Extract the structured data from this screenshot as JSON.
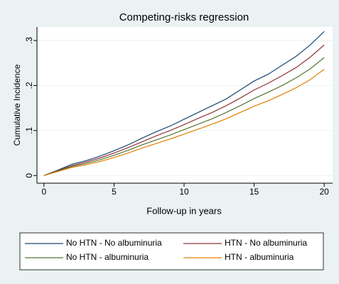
{
  "chart_data": {
    "type": "line",
    "title": "Competing-risks regression",
    "x_label": "Follow-up in years",
    "y_label": "Cumulative Incidence",
    "x": [
      0,
      1,
      2,
      3,
      4,
      5,
      6,
      7,
      8,
      9,
      10,
      11,
      12,
      13,
      14,
      15,
      16,
      17,
      18,
      19,
      20
    ],
    "series": [
      {
        "name": "No HTN - No albuminuria",
        "color": "#1a476f",
        "values": [
          0,
          0.012,
          0.025,
          0.033,
          0.043,
          0.055,
          0.068,
          0.083,
          0.097,
          0.11,
          0.125,
          0.14,
          0.155,
          0.17,
          0.19,
          0.21,
          0.225,
          0.245,
          0.265,
          0.29,
          0.32
        ]
      },
      {
        "name": "HTN - No albuminuria",
        "color": "#90353b",
        "values": [
          0,
          0.011,
          0.022,
          0.03,
          0.039,
          0.05,
          0.062,
          0.075,
          0.088,
          0.1,
          0.113,
          0.127,
          0.14,
          0.155,
          0.172,
          0.19,
          0.205,
          0.222,
          0.24,
          0.263,
          0.29
        ]
      },
      {
        "name": "No HTN - albuminuria",
        "color": "#55752f",
        "values": [
          0,
          0.01,
          0.02,
          0.027,
          0.035,
          0.045,
          0.056,
          0.068,
          0.079,
          0.09,
          0.102,
          0.114,
          0.126,
          0.14,
          0.155,
          0.171,
          0.185,
          0.2,
          0.217,
          0.237,
          0.262
        ]
      },
      {
        "name": "HTN - albuminuria",
        "color": "#e37e00",
        "values": [
          0,
          0.009,
          0.018,
          0.024,
          0.031,
          0.04,
          0.05,
          0.061,
          0.071,
          0.081,
          0.092,
          0.103,
          0.114,
          0.126,
          0.14,
          0.154,
          0.166,
          0.18,
          0.195,
          0.213,
          0.236
        ]
      }
    ],
    "xlim": [
      -0.5,
      20.6
    ],
    "xticks": [
      0,
      5,
      10,
      15,
      20
    ],
    "ylim": [
      -0.017,
      0.33
    ],
    "yticks": [
      0,
      {
        "value": 0.1,
        "label": ".1"
      },
      {
        "value": 0.2,
        "label": ".2"
      },
      {
        "value": 0.3,
        "label": ".3"
      }
    ],
    "grid": true
  }
}
